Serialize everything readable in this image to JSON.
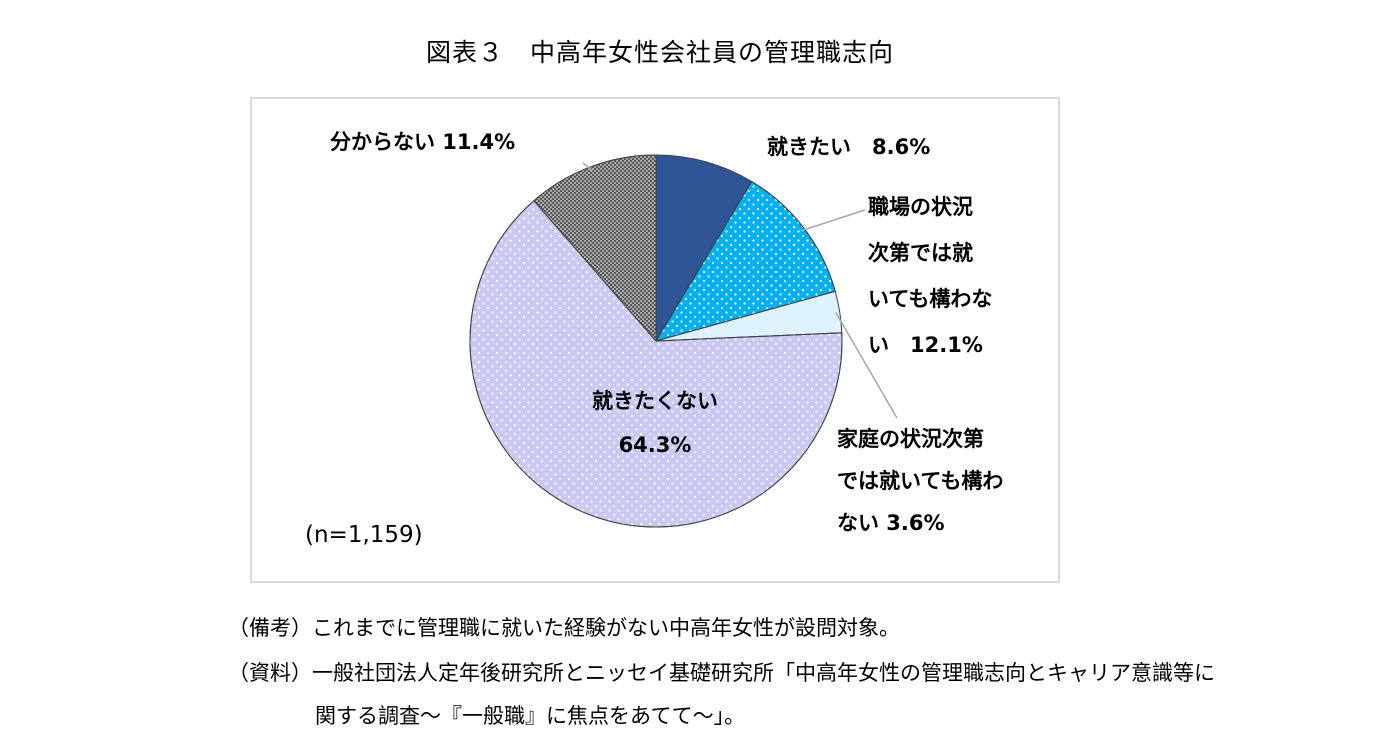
{
  "title": "図表３　中高年女性会社員の管理職志向",
  "sample_note": "(n=1,159)",
  "footnotes": {
    "remarks": "（備考）これまでに管理職に就いた経験がない中高年女性が設問対象。",
    "source_line1": "（資料）一般社団法人定年後研究所とニッセイ基礎研究所「中高年女性の管理職志向とキャリア意識等に",
    "source_line2": "関する調査～『一般職』に焦点をあてて～」。"
  },
  "colors": {
    "want": "#2f5597",
    "depends_work": "#00b0f0",
    "depends_family": "#ddf2fc",
    "do_not_want": "#c9c9f4",
    "unknown": "#7f7f7f"
  },
  "chart_data": {
    "type": "pie",
    "start": "12 o'clock, clockwise",
    "slices": [
      {
        "label": "就きたい",
        "value": 8.6,
        "display": "就きたい　8.6%",
        "color": "#2f5597",
        "pattern": "solid"
      },
      {
        "label": "職場の状況次第では就いても構わない",
        "value": 12.1,
        "display": "職場の状況\n次第では就\nいても構わな\nい　12.1%",
        "color": "#00b0f0",
        "pattern": "dots-white"
      },
      {
        "label": "家庭の状況次第では就いても構わない",
        "value": 3.6,
        "display": "家庭の状況次第\nでは就いても構わ\nない 3.6%",
        "color": "#ddf2fc",
        "pattern": "solid"
      },
      {
        "label": "就きたくない",
        "value": 64.3,
        "display": "就きたくない\n64.3%",
        "color": "#c9c9f4",
        "pattern": "dots-white"
      },
      {
        "label": "分からない",
        "value": 11.4,
        "display": "分からない 11.4%",
        "color": "#7f7f7f",
        "pattern": "fine-dots"
      }
    ]
  }
}
